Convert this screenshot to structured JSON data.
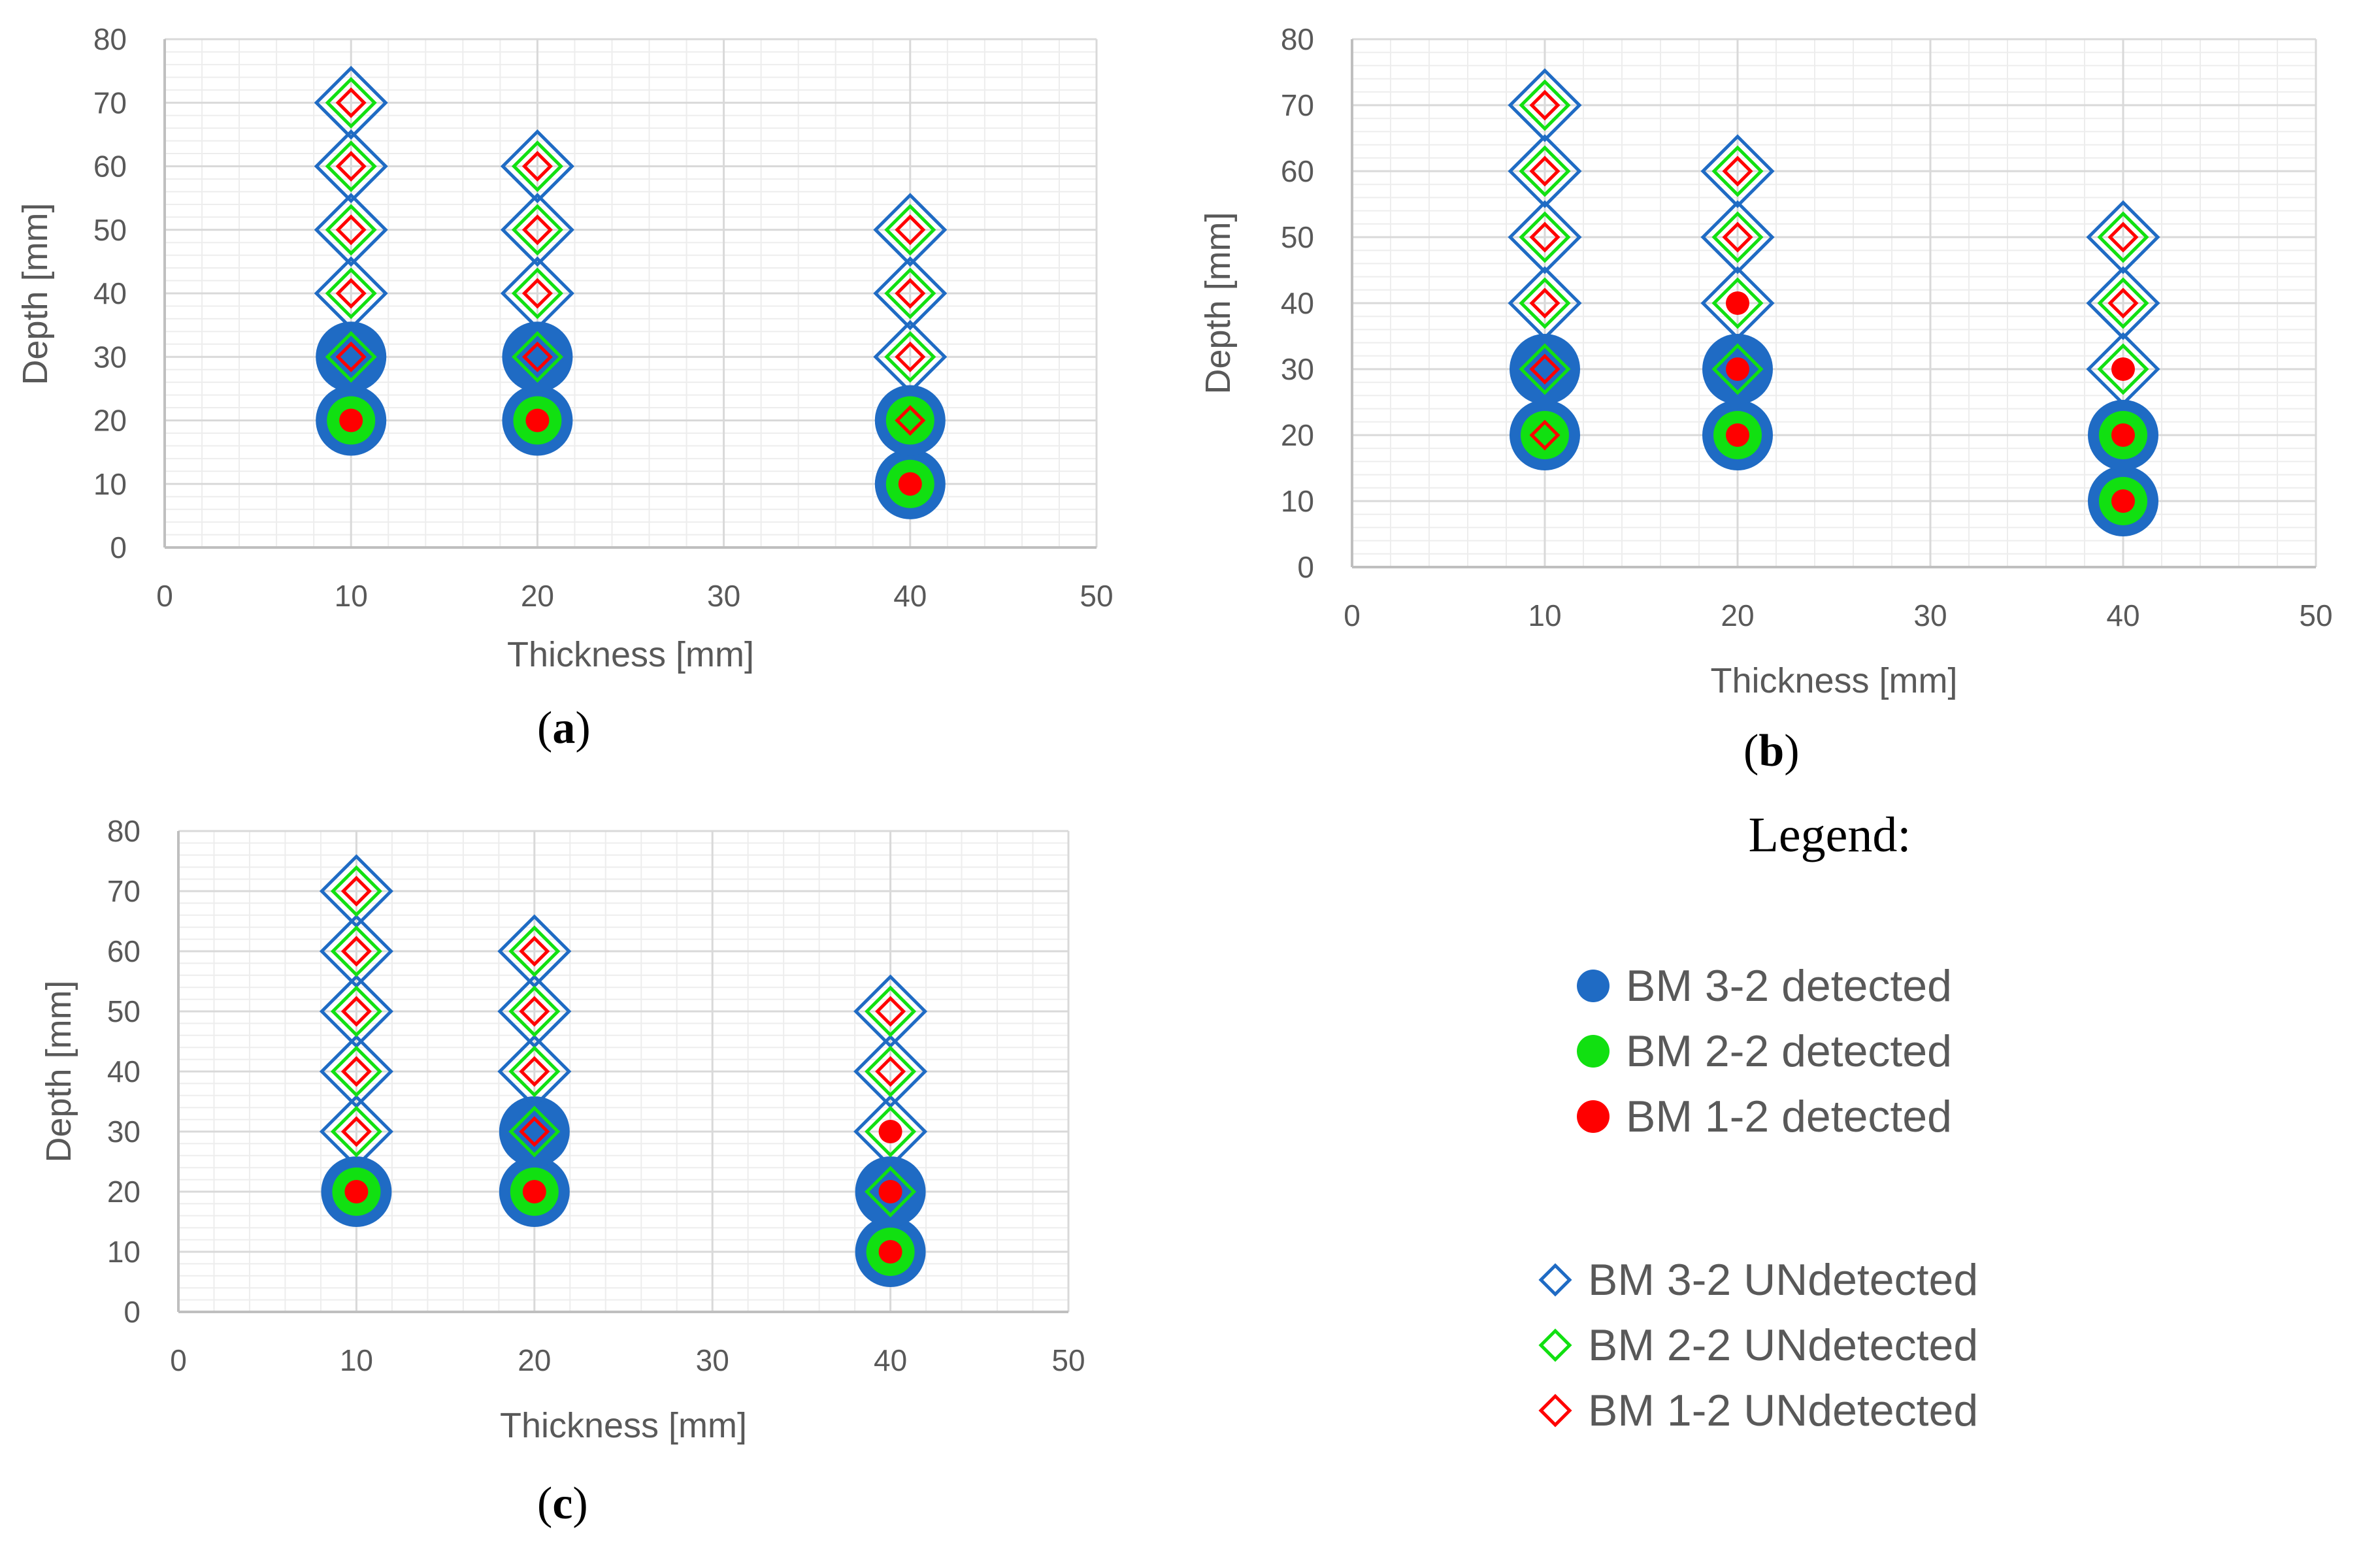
{
  "colors": {
    "bm32": "#1F6BC4",
    "bm22": "#11E011",
    "bm12": "#FF0000",
    "grid_major": "#D9D9D9",
    "grid_minor": "#EDEDED",
    "axis": "#BFBFBF"
  },
  "legend": {
    "title": "Legend:",
    "items": [
      {
        "label": "BM 3-2 detected",
        "marker": "circle",
        "color_key": "bm32"
      },
      {
        "label": "BM 2-2 detected",
        "marker": "circle",
        "color_key": "bm22"
      },
      {
        "label": "BM 1-2 detected",
        "marker": "circle",
        "color_key": "bm12"
      },
      {
        "label": "BM 3-2 UNdetected",
        "marker": "diamond",
        "color_key": "bm32"
      },
      {
        "label": "BM 2-2 UNdetected",
        "marker": "diamond",
        "color_key": "bm22"
      },
      {
        "label": "BM 1-2 UNdetected",
        "marker": "diamond",
        "color_key": "bm12"
      }
    ]
  },
  "chart_data": [
    {
      "type": "scatter",
      "panel": "a",
      "caption": "(a)",
      "xlabel": "Thickness [mm]",
      "ylabel": "Depth [mm]",
      "xlim": [
        0,
        50
      ],
      "ylim": [
        0,
        80
      ],
      "xticks": [
        0,
        10,
        20,
        30,
        40,
        50
      ],
      "yticks": [
        0,
        10,
        20,
        30,
        40,
        50,
        60,
        70,
        80
      ],
      "series": [
        {
          "name": "BM 3-2",
          "detected": [
            [
              10,
              20
            ],
            [
              10,
              30
            ],
            [
              20,
              20
            ],
            [
              20,
              30
            ],
            [
              40,
              10
            ],
            [
              40,
              20
            ]
          ],
          "undetected": [
            [
              10,
              40
            ],
            [
              10,
              50
            ],
            [
              10,
              60
            ],
            [
              10,
              70
            ],
            [
              20,
              40
            ],
            [
              20,
              50
            ],
            [
              20,
              60
            ],
            [
              40,
              30
            ],
            [
              40,
              40
            ],
            [
              40,
              50
            ]
          ]
        },
        {
          "name": "BM 2-2",
          "detected": [
            [
              10,
              20
            ],
            [
              20,
              20
            ],
            [
              40,
              10
            ],
            [
              40,
              20
            ]
          ],
          "undetected": [
            [
              10,
              30
            ],
            [
              10,
              40
            ],
            [
              10,
              50
            ],
            [
              10,
              60
            ],
            [
              10,
              70
            ],
            [
              20,
              30
            ],
            [
              20,
              40
            ],
            [
              20,
              50
            ],
            [
              20,
              60
            ],
            [
              40,
              30
            ],
            [
              40,
              40
            ],
            [
              40,
              50
            ]
          ]
        },
        {
          "name": "BM 1-2",
          "detected": [
            [
              10,
              20
            ],
            [
              20,
              20
            ],
            [
              40,
              10
            ]
          ],
          "undetected": [
            [
              10,
              30
            ],
            [
              10,
              40
            ],
            [
              10,
              50
            ],
            [
              10,
              60
            ],
            [
              10,
              70
            ],
            [
              20,
              30
            ],
            [
              20,
              40
            ],
            [
              20,
              50
            ],
            [
              20,
              60
            ],
            [
              40,
              20
            ],
            [
              40,
              30
            ],
            [
              40,
              40
            ],
            [
              40,
              50
            ]
          ]
        }
      ]
    },
    {
      "type": "scatter",
      "panel": "b",
      "caption": "(b)",
      "xlabel": "Thickness [mm]",
      "ylabel": "Depth [mm]",
      "xlim": [
        0,
        50
      ],
      "ylim": [
        0,
        80
      ],
      "xticks": [
        0,
        10,
        20,
        30,
        40,
        50
      ],
      "yticks": [
        0,
        10,
        20,
        30,
        40,
        50,
        60,
        70,
        80
      ],
      "series": [
        {
          "name": "BM 3-2",
          "detected": [
            [
              10,
              20
            ],
            [
              10,
              30
            ],
            [
              20,
              20
            ],
            [
              20,
              30
            ],
            [
              40,
              10
            ],
            [
              40,
              20
            ]
          ],
          "undetected": [
            [
              10,
              40
            ],
            [
              10,
              50
            ],
            [
              10,
              60
            ],
            [
              10,
              70
            ],
            [
              20,
              40
            ],
            [
              20,
              50
            ],
            [
              20,
              60
            ],
            [
              40,
              30
            ],
            [
              40,
              40
            ],
            [
              40,
              50
            ]
          ]
        },
        {
          "name": "BM 2-2",
          "detected": [
            [
              10,
              20
            ],
            [
              20,
              20
            ],
            [
              40,
              10
            ],
            [
              40,
              20
            ]
          ],
          "undetected": [
            [
              10,
              30
            ],
            [
              10,
              40
            ],
            [
              10,
              50
            ],
            [
              10,
              60
            ],
            [
              10,
              70
            ],
            [
              20,
              30
            ],
            [
              20,
              40
            ],
            [
              20,
              50
            ],
            [
              20,
              60
            ],
            [
              40,
              30
            ],
            [
              40,
              40
            ],
            [
              40,
              50
            ]
          ]
        },
        {
          "name": "BM 1-2",
          "detected": [
            [
              20,
              20
            ],
            [
              20,
              30
            ],
            [
              20,
              40
            ],
            [
              40,
              10
            ],
            [
              40,
              20
            ],
            [
              40,
              30
            ]
          ],
          "undetected": [
            [
              10,
              20
            ],
            [
              10,
              30
            ],
            [
              10,
              40
            ],
            [
              10,
              50
            ],
            [
              10,
              60
            ],
            [
              10,
              70
            ],
            [
              20,
              50
            ],
            [
              20,
              60
            ],
            [
              40,
              40
            ],
            [
              40,
              50
            ]
          ]
        }
      ]
    },
    {
      "type": "scatter",
      "panel": "c",
      "caption": "(c)",
      "xlabel": "Thickness [mm]",
      "ylabel": "Depth [mm]",
      "xlim": [
        0,
        50
      ],
      "ylim": [
        0,
        80
      ],
      "xticks": [
        0,
        10,
        20,
        30,
        40,
        50
      ],
      "yticks": [
        0,
        10,
        20,
        30,
        40,
        50,
        60,
        70,
        80
      ],
      "series": [
        {
          "name": "BM 3-2",
          "detected": [
            [
              10,
              20
            ],
            [
              20,
              20
            ],
            [
              20,
              30
            ],
            [
              40,
              10
            ],
            [
              40,
              20
            ]
          ],
          "undetected": [
            [
              10,
              30
            ],
            [
              10,
              40
            ],
            [
              10,
              50
            ],
            [
              10,
              60
            ],
            [
              10,
              70
            ],
            [
              20,
              40
            ],
            [
              20,
              50
            ],
            [
              20,
              60
            ],
            [
              40,
              30
            ],
            [
              40,
              40
            ],
            [
              40,
              50
            ]
          ]
        },
        {
          "name": "BM 2-2",
          "detected": [
            [
              10,
              20
            ],
            [
              20,
              20
            ],
            [
              40,
              10
            ]
          ],
          "undetected": [
            [
              10,
              30
            ],
            [
              10,
              40
            ],
            [
              10,
              50
            ],
            [
              10,
              60
            ],
            [
              10,
              70
            ],
            [
              20,
              30
            ],
            [
              20,
              40
            ],
            [
              20,
              50
            ],
            [
              20,
              60
            ],
            [
              40,
              20
            ],
            [
              40,
              30
            ],
            [
              40,
              40
            ],
            [
              40,
              50
            ]
          ]
        },
        {
          "name": "BM 1-2",
          "detected": [
            [
              10,
              20
            ],
            [
              20,
              20
            ],
            [
              40,
              10
            ],
            [
              40,
              20
            ],
            [
              40,
              30
            ]
          ],
          "undetected": [
            [
              10,
              30
            ],
            [
              10,
              40
            ],
            [
              10,
              50
            ],
            [
              10,
              60
            ],
            [
              10,
              70
            ],
            [
              20,
              30
            ],
            [
              20,
              40
            ],
            [
              20,
              50
            ],
            [
              20,
              60
            ],
            [
              40,
              40
            ],
            [
              40,
              50
            ]
          ]
        }
      ]
    }
  ]
}
